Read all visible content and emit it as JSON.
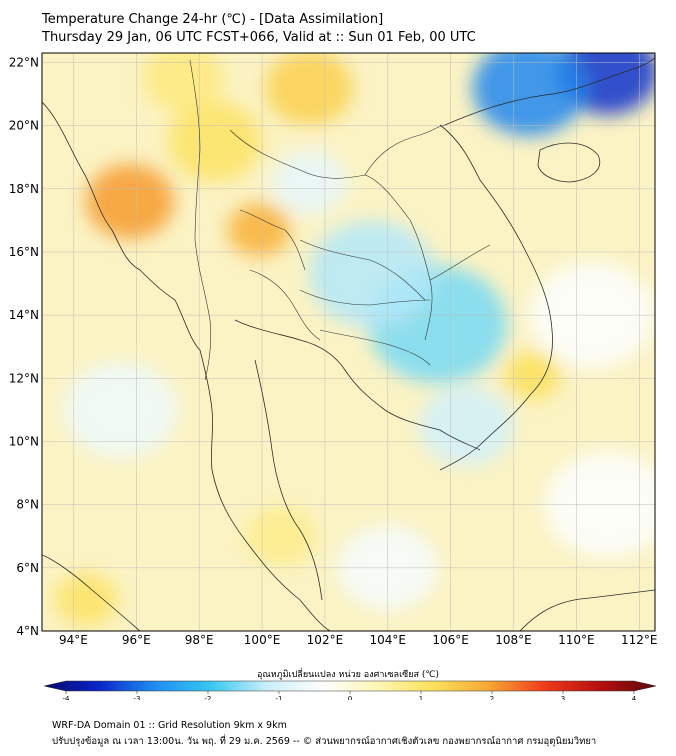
{
  "title": {
    "line1": "Temperature Change 24-hr (℃) - [Data Assimilation]",
    "line2": "Thursday 29 Jan, 06 UTC FCST+066, Valid at :: Sun 01 Feb, 00 UTC"
  },
  "map": {
    "lon_range": [
      93,
      112.5
    ],
    "lat_range": [
      4,
      22.3
    ],
    "lat_labels": [
      "22°N",
      "20°N",
      "18°N",
      "16°N",
      "14°N",
      "12°N",
      "10°N",
      "8°N",
      "6°N",
      "4°N"
    ],
    "lat_values": [
      22,
      20,
      18,
      16,
      14,
      12,
      10,
      8,
      6,
      4
    ],
    "lon_labels": [
      "94°E",
      "96°E",
      "98°E",
      "100°E",
      "102°E",
      "104°E",
      "106°E",
      "108°E",
      "110°E",
      "112°E"
    ],
    "lon_values": [
      94,
      96,
      98,
      100,
      102,
      104,
      106,
      108,
      110,
      112
    ],
    "anomalies": [
      {
        "lon": 111,
        "lat": 21.7,
        "value": -3.2,
        "spread": 1.6
      },
      {
        "lon": 108.5,
        "lat": 21.2,
        "value": -2.6,
        "spread": 1.8
      },
      {
        "lon": 105.6,
        "lat": 13.7,
        "value": -1.5,
        "spread": 2.2
      },
      {
        "lon": 103.5,
        "lat": 15.3,
        "value": -1.2,
        "spread": 2.0
      },
      {
        "lon": 106.5,
        "lat": 10.5,
        "value": -1.0,
        "spread": 1.5
      },
      {
        "lon": 101.5,
        "lat": 18.2,
        "value": -0.7,
        "spread": 1.2
      },
      {
        "lon": 95.5,
        "lat": 11.0,
        "value": -0.6,
        "spread": 1.8
      },
      {
        "lon": 110.5,
        "lat": 14.0,
        "value": -0.4,
        "spread": 2.0
      },
      {
        "lon": 104.0,
        "lat": 6.0,
        "value": -0.5,
        "spread": 1.6
      },
      {
        "lon": 111.0,
        "lat": 8.0,
        "value": -0.4,
        "spread": 2.0
      },
      {
        "lon": 95.8,
        "lat": 17.6,
        "value": 1.9,
        "spread": 1.4
      },
      {
        "lon": 99.9,
        "lat": 16.7,
        "value": 1.7,
        "spread": 1.0
      },
      {
        "lon": 101.5,
        "lat": 21.2,
        "value": 1.3,
        "spread": 1.4
      },
      {
        "lon": 98.5,
        "lat": 19.5,
        "value": 1.0,
        "spread": 1.5
      },
      {
        "lon": 108.6,
        "lat": 12.1,
        "value": 1.1,
        "spread": 0.9
      },
      {
        "lon": 94.4,
        "lat": 5.0,
        "value": 1.0,
        "spread": 1.0
      },
      {
        "lon": 100.6,
        "lat": 7.0,
        "value": 0.7,
        "spread": 1.1
      },
      {
        "lon": 97.5,
        "lat": 21.5,
        "value": 0.8,
        "spread": 1.3
      }
    ]
  },
  "colorbar": {
    "label": "อุณหภูมิเปลี่ยนแปลง หน่วย องศาเซลเซียส (℃)",
    "ticks": [
      "-4",
      "-3",
      "-2",
      "-1",
      "0",
      "1",
      "2",
      "3",
      "4"
    ],
    "tick_values": [
      -4,
      -3,
      -2,
      -1,
      0,
      1,
      2,
      3,
      4
    ],
    "range": [
      -4,
      4
    ],
    "colors": [
      "#08086b",
      "#0a27c9",
      "#1f8ef2",
      "#38c8f0",
      "#c9eefa",
      "#ffffff",
      "#fff6b3",
      "#fbe05a",
      "#f7a733",
      "#ef3b1c",
      "#b40f0f",
      "#5e0707"
    ]
  },
  "footer": {
    "line1": "WRF-DA Domain 01 :: Grid Resolution 9km x 9km",
    "line2": "ปรับปรุงข้อมูล ณ เวลา 13:00น. วัน พฤ. ที่ 29 ม.ค. 2569 -- © ส่วนพยากรณ์อากาศเชิงตัวเลข กองพยากรณ์อากาศ กรมอุตุนิยมวิทยา"
  }
}
